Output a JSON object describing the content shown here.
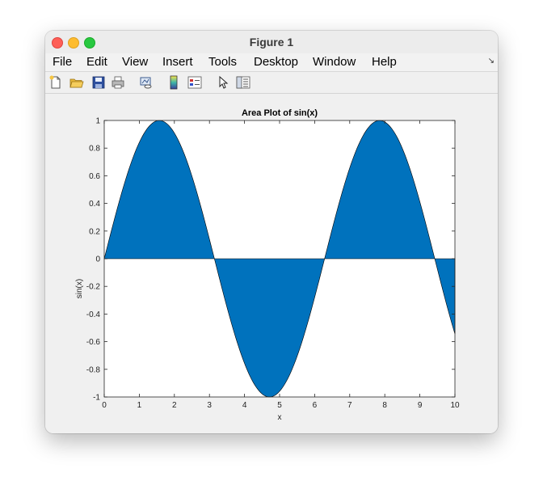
{
  "window": {
    "title": "Figure 1"
  },
  "menu": [
    "File",
    "Edit",
    "View",
    "Insert",
    "Tools",
    "Desktop",
    "Window",
    "Help"
  ],
  "toolbar": [
    "new-figure-icon",
    "open-file-icon",
    "save-icon",
    "print-icon",
    "link-plot-icon",
    "colorbar-icon",
    "legend-icon",
    "pointer-icon",
    "property-inspector-icon"
  ],
  "chart_data": {
    "type": "area",
    "title": "Area Plot of sin(x)",
    "xlabel": "x",
    "ylabel": "sin(x)",
    "xlim": [
      0,
      10
    ],
    "ylim": [
      -1,
      1
    ],
    "xticks": [
      0,
      1,
      2,
      3,
      4,
      5,
      6,
      7,
      8,
      9,
      10
    ],
    "yticks": [
      1,
      0.8,
      0.6,
      0.4,
      0.2,
      0,
      -0.2,
      -0.4,
      -0.6,
      -0.8,
      -1
    ],
    "xtick_labels": [
      "0",
      "1",
      "2",
      "3",
      "4",
      "5",
      "6",
      "7",
      "8",
      "9",
      "10"
    ],
    "ytick_labels": [
      "1",
      "0.8",
      "0.6",
      "0.4",
      "0.2",
      "0",
      "-0.2",
      "-0.4",
      "-0.6",
      "-0.8",
      "-1"
    ],
    "series": [
      {
        "fill_color": "#0072bd",
        "x": [
          0,
          0.5,
          1,
          1.5,
          1.5708,
          2,
          2.5,
          3,
          3.1416,
          3.5,
          4,
          4.5,
          4.7124,
          5,
          5.5,
          6,
          6.2832,
          6.5,
          7,
          7.5,
          7.854,
          8,
          8.5,
          9,
          9.4248,
          9.5,
          10
        ],
        "y": [
          0,
          0.479,
          0.841,
          0.997,
          1,
          0.909,
          0.598,
          0.141,
          0,
          -0.351,
          -0.757,
          -0.978,
          -1,
          -0.959,
          -0.706,
          -0.279,
          0,
          0.215,
          0.657,
          0.938,
          1,
          0.989,
          0.798,
          0.412,
          0,
          -0.075,
          -0.544
        ]
      }
    ],
    "grid": false,
    "legend": "none"
  }
}
